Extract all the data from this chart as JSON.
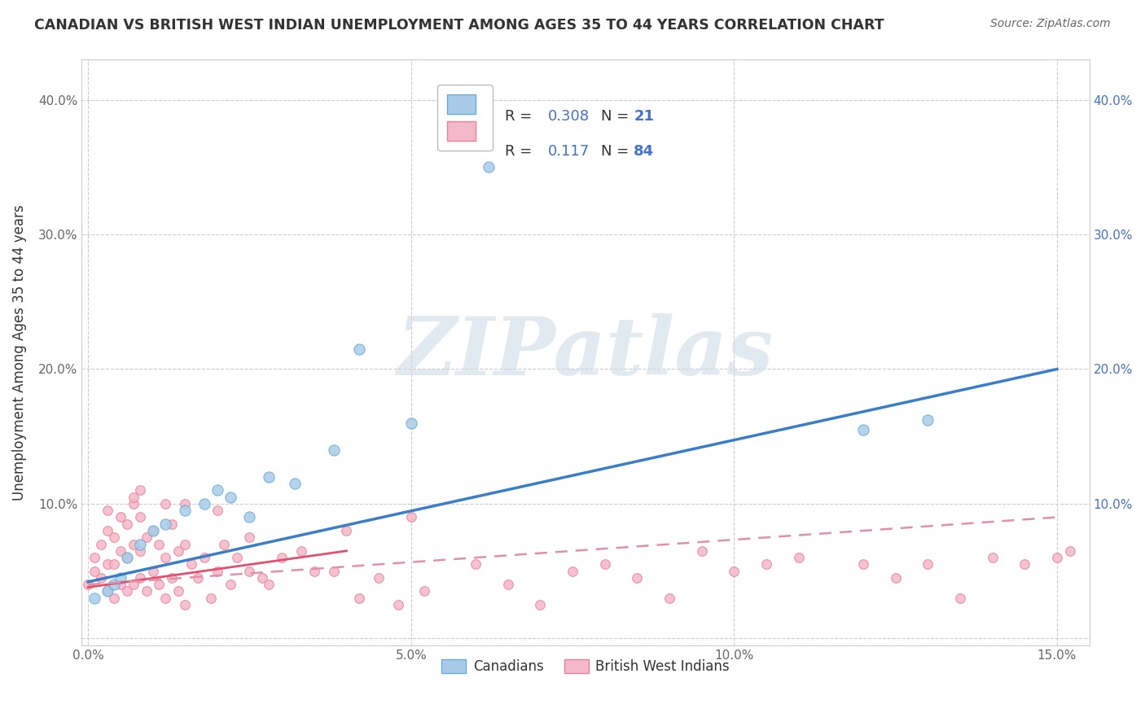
{
  "title": "CANADIAN VS BRITISH WEST INDIAN UNEMPLOYMENT AMONG AGES 35 TO 44 YEARS CORRELATION CHART",
  "source": "Source: ZipAtlas.com",
  "ylabel": "Unemployment Among Ages 35 to 44 years",
  "xlim": [
    -0.001,
    0.155
  ],
  "ylim": [
    -0.005,
    0.43
  ],
  "xticks": [
    0.0,
    0.05,
    0.1,
    0.15
  ],
  "xtick_labels": [
    "0.0%",
    "5.0%",
    "10.0%",
    "15.0%"
  ],
  "yticks": [
    0.0,
    0.1,
    0.2,
    0.3,
    0.4
  ],
  "ytick_labels": [
    "",
    "10.0%",
    "20.0%",
    "30.0%",
    "40.0%"
  ],
  "canadian_color": "#a8cce8",
  "bwi_color": "#f5b8c8",
  "canadian_edge_color": "#6aaad4",
  "bwi_edge_color": "#e8829a",
  "canadian_line_color": "#3a7ec8",
  "bwi_line_color": "#e05070",
  "bwi_dashed_line_color": "#e090a8",
  "background_color": "#ffffff",
  "watermark": "ZIPatlas",
  "legend_R_canadian": "0.308",
  "legend_N_canadian": "21",
  "legend_R_bwi": "0.117",
  "legend_N_bwi": "84",
  "canadian_x": [
    0.001,
    0.003,
    0.004,
    0.005,
    0.006,
    0.008,
    0.01,
    0.012,
    0.015,
    0.018,
    0.02,
    0.022,
    0.025,
    0.028,
    0.032,
    0.038,
    0.042,
    0.05,
    0.062,
    0.12,
    0.13
  ],
  "canadian_y": [
    0.03,
    0.035,
    0.04,
    0.045,
    0.06,
    0.07,
    0.08,
    0.085,
    0.095,
    0.1,
    0.11,
    0.105,
    0.09,
    0.12,
    0.115,
    0.14,
    0.215,
    0.16,
    0.35,
    0.155,
    0.162
  ],
  "bwi_x": [
    0.0,
    0.001,
    0.001,
    0.002,
    0.002,
    0.003,
    0.003,
    0.003,
    0.004,
    0.004,
    0.005,
    0.005,
    0.005,
    0.006,
    0.006,
    0.006,
    0.007,
    0.007,
    0.007,
    0.008,
    0.008,
    0.008,
    0.009,
    0.009,
    0.01,
    0.01,
    0.011,
    0.011,
    0.012,
    0.012,
    0.013,
    0.013,
    0.014,
    0.014,
    0.015,
    0.015,
    0.016,
    0.017,
    0.018,
    0.019,
    0.02,
    0.021,
    0.022,
    0.023,
    0.025,
    0.027,
    0.03,
    0.033,
    0.038,
    0.04,
    0.042,
    0.045,
    0.048,
    0.052,
    0.06,
    0.065,
    0.07,
    0.075,
    0.08,
    0.085,
    0.09,
    0.095,
    0.1,
    0.105,
    0.11,
    0.12,
    0.125,
    0.13,
    0.135,
    0.14,
    0.145,
    0.15,
    0.152,
    0.05,
    0.028,
    0.035,
    0.008,
    0.004,
    0.003,
    0.007,
    0.012,
    0.015,
    0.02,
    0.025
  ],
  "bwi_y": [
    0.04,
    0.05,
    0.06,
    0.045,
    0.07,
    0.035,
    0.055,
    0.08,
    0.03,
    0.075,
    0.04,
    0.065,
    0.09,
    0.035,
    0.06,
    0.085,
    0.04,
    0.07,
    0.1,
    0.045,
    0.065,
    0.09,
    0.035,
    0.075,
    0.05,
    0.08,
    0.04,
    0.07,
    0.03,
    0.06,
    0.045,
    0.085,
    0.035,
    0.065,
    0.025,
    0.07,
    0.055,
    0.045,
    0.06,
    0.03,
    0.05,
    0.07,
    0.04,
    0.06,
    0.075,
    0.045,
    0.06,
    0.065,
    0.05,
    0.08,
    0.03,
    0.045,
    0.025,
    0.035,
    0.055,
    0.04,
    0.025,
    0.05,
    0.055,
    0.045,
    0.03,
    0.065,
    0.05,
    0.055,
    0.06,
    0.055,
    0.045,
    0.055,
    0.03,
    0.06,
    0.055,
    0.06,
    0.065,
    0.09,
    0.04,
    0.05,
    0.11,
    0.055,
    0.095,
    0.105,
    0.1,
    0.1,
    0.095,
    0.05
  ],
  "can_line_x0": 0.0,
  "can_line_x1": 0.15,
  "can_line_y0": 0.042,
  "can_line_y1": 0.2,
  "bwi_solid_line_x0": 0.0,
  "bwi_solid_line_x1": 0.04,
  "bwi_solid_line_y0": 0.038,
  "bwi_solid_line_y1": 0.065,
  "bwi_dash_line_x0": 0.0,
  "bwi_dash_line_x1": 0.15,
  "bwi_dash_line_y0": 0.04,
  "bwi_dash_line_y1": 0.09
}
